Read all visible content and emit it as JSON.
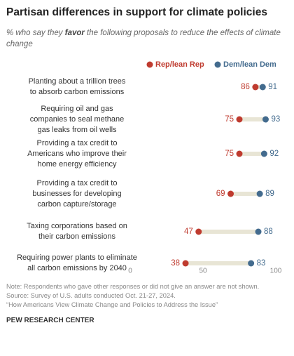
{
  "chart_data": {
    "type": "dot",
    "title": "Partisan differences in support for climate policies",
    "subtitle": [
      "% who say they ",
      "favor",
      " the following proposals to reduce the effects of climate change"
    ],
    "categories": [
      "Planting about a trillion trees\nto absorb carbon emissions",
      "Requiring oil and gas\ncompanies to seal methane\ngas leaks from oil wells",
      "Providing a tax credit to\nAmericans who improve their\nhome energy efficiency",
      "Providing a tax credit to\nbusinesses for developing\ncarbon capture/storage",
      "Taxing corporations based on\ntheir carbon emissions",
      "Requiring power plants to eliminate\nall carbon emissions by 2040"
    ],
    "series": [
      {
        "name": "Rep/lean Rep",
        "color": "#bf3b2f",
        "values": [
          86,
          75,
          75,
          69,
          47,
          38
        ]
      },
      {
        "name": "Dem/lean Dem",
        "color": "#436b8e",
        "values": [
          91,
          93,
          92,
          89,
          88,
          83
        ]
      }
    ],
    "xlim": [
      0,
      100
    ],
    "xticks": [
      0,
      50,
      100
    ],
    "notes": [
      "Note: Respondents who gave other responses or did not give an answer are not shown.",
      "Source: Survey of U.S. adults conducted Oct. 21-27, 2024.",
      "“How Americans View Climate Change and Policies to Address the Issue”"
    ],
    "source": "PEW RESEARCH CENTER"
  }
}
